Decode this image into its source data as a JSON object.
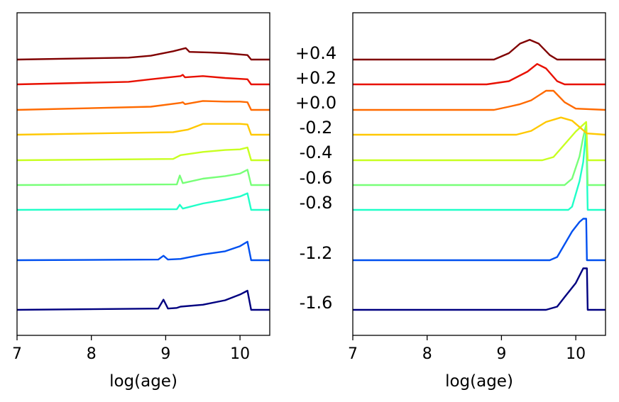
{
  "chart_data": [
    {
      "type": "line",
      "xlabel": "log(age)",
      "ylabel": "",
      "xlim": [
        7,
        10.4
      ],
      "xticks": [
        "7",
        "8",
        "9",
        "10"
      ],
      "yticks": "none",
      "series": [
        {
          "color": "#000080",
          "points": [
            [
              7.0,
              0
            ],
            [
              8.0,
              0.01
            ],
            [
              8.9,
              0.02
            ],
            [
              8.97,
              0.16
            ],
            [
              9.03,
              0.02
            ],
            [
              9.15,
              0.03
            ],
            [
              9.2,
              0.05
            ],
            [
              9.5,
              0.08
            ],
            [
              9.8,
              0.15
            ],
            [
              10.0,
              0.24
            ],
            [
              10.1,
              0.3
            ],
            [
              10.15,
              0.0
            ],
            [
              10.4,
              0.0
            ]
          ]
        },
        {
          "color": "#0050f0",
          "points": [
            [
              7.0,
              0
            ],
            [
              8.9,
              0.01
            ],
            [
              8.97,
              0.07
            ],
            [
              9.03,
              0.01
            ],
            [
              9.2,
              0.02
            ],
            [
              9.5,
              0.09
            ],
            [
              9.8,
              0.14
            ],
            [
              10.0,
              0.22
            ],
            [
              10.1,
              0.29
            ],
            [
              10.15,
              0.0
            ],
            [
              10.4,
              0.0
            ]
          ]
        },
        {
          "color": "#20ffc8",
          "points": [
            [
              7.0,
              0
            ],
            [
              9.15,
              0.01
            ],
            [
              9.19,
              0.08
            ],
            [
              9.23,
              0.02
            ],
            [
              9.5,
              0.1
            ],
            [
              9.8,
              0.16
            ],
            [
              10.0,
              0.21
            ],
            [
              10.1,
              0.26
            ],
            [
              10.15,
              0.0
            ],
            [
              10.4,
              0.0
            ]
          ]
        },
        {
          "color": "#78ff78",
          "points": [
            [
              7.0,
              0
            ],
            [
              9.15,
              0.01
            ],
            [
              9.19,
              0.15
            ],
            [
              9.23,
              0.03
            ],
            [
              9.5,
              0.1
            ],
            [
              9.8,
              0.14
            ],
            [
              10.0,
              0.18
            ],
            [
              10.1,
              0.24
            ],
            [
              10.15,
              0.0
            ],
            [
              10.4,
              0.0
            ]
          ]
        },
        {
          "color": "#c8ff20",
          "points": [
            [
              7.0,
              0
            ],
            [
              9.1,
              0.02
            ],
            [
              9.2,
              0.08
            ],
            [
              9.5,
              0.13
            ],
            [
              9.8,
              0.16
            ],
            [
              10.0,
              0.17
            ],
            [
              10.1,
              0.2
            ],
            [
              10.15,
              0.0
            ],
            [
              10.4,
              0.0
            ]
          ]
        },
        {
          "color": "#ffc800",
          "points": [
            [
              7.0,
              0
            ],
            [
              9.1,
              0.04
            ],
            [
              9.2,
              0.06
            ],
            [
              9.3,
              0.08
            ],
            [
              9.5,
              0.17
            ],
            [
              9.8,
              0.17
            ],
            [
              10.0,
              0.17
            ],
            [
              10.1,
              0.16
            ],
            [
              10.15,
              0.0
            ],
            [
              10.4,
              0.0
            ]
          ]
        },
        {
          "color": "#ff6a00",
          "points": [
            [
              7.0,
              0
            ],
            [
              8.8,
              0.05
            ],
            [
              9.2,
              0.11
            ],
            [
              9.23,
              0.12
            ],
            [
              9.26,
              0.09
            ],
            [
              9.5,
              0.14
            ],
            [
              9.8,
              0.13
            ],
            [
              10.0,
              0.13
            ],
            [
              10.1,
              0.12
            ],
            [
              10.15,
              0.0
            ],
            [
              10.4,
              0.0
            ]
          ]
        },
        {
          "color": "#e81000",
          "points": [
            [
              7.0,
              0
            ],
            [
              8.5,
              0.04
            ],
            [
              8.8,
              0.08
            ],
            [
              9.2,
              0.13
            ],
            [
              9.23,
              0.15
            ],
            [
              9.26,
              0.11
            ],
            [
              9.5,
              0.13
            ],
            [
              9.8,
              0.1
            ],
            [
              10.1,
              0.08
            ],
            [
              10.15,
              0.0
            ],
            [
              10.4,
              0.0
            ]
          ]
        },
        {
          "color": "#800000",
          "points": [
            [
              7.0,
              0
            ],
            [
              8.5,
              0.03
            ],
            [
              8.8,
              0.06
            ],
            [
              9.1,
              0.13
            ],
            [
              9.27,
              0.18
            ],
            [
              9.32,
              0.12
            ],
            [
              9.6,
              0.11
            ],
            [
              9.8,
              0.1
            ],
            [
              10.1,
              0.07
            ],
            [
              10.15,
              0.0
            ],
            [
              10.4,
              0.0
            ]
          ]
        }
      ]
    },
    {
      "type": "line",
      "xlabel": "log(age)",
      "ylabel": "",
      "xlim": [
        7,
        10.4
      ],
      "xticks": [
        "7",
        "8",
        "9",
        "10"
      ],
      "yticks": "none",
      "series": [
        {
          "color": "#000080",
          "points": [
            [
              7.0,
              0
            ],
            [
              9.6,
              0
            ],
            [
              9.75,
              0.05
            ],
            [
              9.85,
              0.2
            ],
            [
              10.0,
              0.42
            ],
            [
              10.1,
              0.65
            ],
            [
              10.15,
              0.65
            ],
            [
              10.16,
              0.0
            ],
            [
              10.4,
              0.0
            ]
          ]
        },
        {
          "color": "#0050f0",
          "points": [
            [
              7.0,
              0
            ],
            [
              9.65,
              0
            ],
            [
              9.75,
              0.05
            ],
            [
              9.85,
              0.25
            ],
            [
              9.95,
              0.45
            ],
            [
              10.05,
              0.6
            ],
            [
              10.1,
              0.65
            ],
            [
              10.14,
              0.65
            ],
            [
              10.15,
              0.0
            ],
            [
              10.4,
              0.0
            ]
          ]
        },
        {
          "color": "#20ffc8",
          "points": [
            [
              7.0,
              0
            ],
            [
              9.9,
              0
            ],
            [
              9.95,
              0.05
            ],
            [
              10.05,
              0.45
            ],
            [
              10.1,
              0.75
            ],
            [
              10.14,
              1.25
            ],
            [
              10.16,
              0.0
            ],
            [
              10.4,
              0.0
            ]
          ]
        },
        {
          "color": "#78ff78",
          "points": [
            [
              7.0,
              0
            ],
            [
              9.85,
              0
            ],
            [
              9.95,
              0.1
            ],
            [
              10.05,
              0.45
            ],
            [
              10.1,
              0.75
            ],
            [
              10.14,
              0.95
            ],
            [
              10.16,
              0.0
            ],
            [
              10.4,
              0.0
            ]
          ]
        },
        {
          "color": "#c8ff20",
          "points": [
            [
              7.0,
              0
            ],
            [
              9.55,
              0
            ],
            [
              9.7,
              0.05
            ],
            [
              9.85,
              0.25
            ],
            [
              10.0,
              0.45
            ],
            [
              10.14,
              0.6
            ],
            [
              10.16,
              0.0
            ],
            [
              10.4,
              0.0
            ]
          ]
        },
        {
          "color": "#ffc800",
          "points": [
            [
              7.0,
              0
            ],
            [
              9.2,
              0
            ],
            [
              9.4,
              0.06
            ],
            [
              9.6,
              0.2
            ],
            [
              9.8,
              0.27
            ],
            [
              9.95,
              0.22
            ],
            [
              10.05,
              0.12
            ],
            [
              10.15,
              0.02
            ],
            [
              10.4,
              0.0
            ]
          ]
        },
        {
          "color": "#ff6a00",
          "points": [
            [
              7.0,
              0
            ],
            [
              8.9,
              0
            ],
            [
              9.1,
              0.05
            ],
            [
              9.25,
              0.09
            ],
            [
              9.4,
              0.15
            ],
            [
              9.6,
              0.3
            ],
            [
              9.7,
              0.3
            ],
            [
              9.85,
              0.12
            ],
            [
              10.0,
              0.02
            ],
            [
              10.4,
              0.0
            ]
          ]
        },
        {
          "color": "#e81000",
          "points": [
            [
              7.0,
              0
            ],
            [
              8.8,
              0
            ],
            [
              9.1,
              0.05
            ],
            [
              9.35,
              0.2
            ],
            [
              9.48,
              0.32
            ],
            [
              9.6,
              0.25
            ],
            [
              9.75,
              0.05
            ],
            [
              9.85,
              0.0
            ],
            [
              10.4,
              0.0
            ]
          ]
        },
        {
          "color": "#800000",
          "points": [
            [
              7.0,
              0
            ],
            [
              8.9,
              0
            ],
            [
              9.1,
              0.1
            ],
            [
              9.25,
              0.25
            ],
            [
              9.38,
              0.31
            ],
            [
              9.5,
              0.25
            ],
            [
              9.65,
              0.07
            ],
            [
              9.75,
              0.0
            ],
            [
              10.4,
              0.0
            ]
          ]
        }
      ]
    }
  ],
  "metallicity_labels": [
    "+0.4",
    "+0.2",
    "+0.0",
    "-0.2",
    "-0.4",
    "-0.6",
    "-0.8",
    "-1.2",
    "-1.6"
  ]
}
